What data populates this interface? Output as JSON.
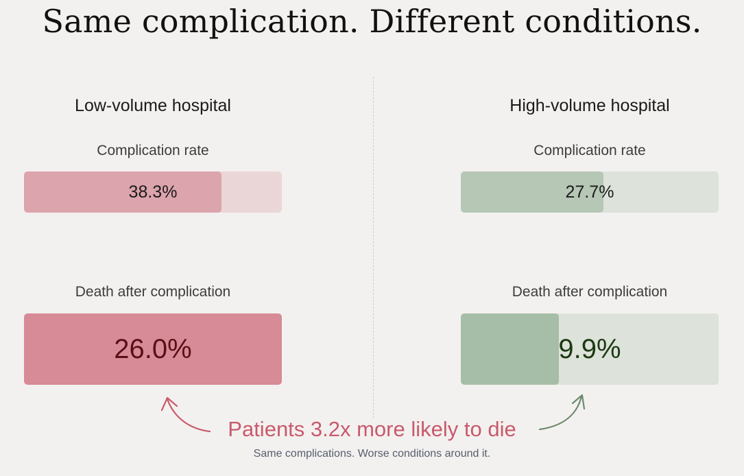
{
  "title": "Same complication. Different conditions.",
  "panels": [
    {
      "name": "Low-volume hospital",
      "complication_label": "Complication rate",
      "complication_text": "38.3%",
      "death_label": "Death after complication",
      "death_text": "26.0%"
    },
    {
      "name": "High-volume hospital",
      "complication_label": "Complication rate",
      "complication_text": "27.7%",
      "death_label": "Death after complication",
      "death_text": "9.9%"
    }
  ],
  "callout": {
    "headline": "Patients 3.2x more likely to die",
    "subtext": "Same complications. Worse conditions around it."
  },
  "colors": {
    "low_accent": "#d68b96",
    "high_accent": "#a6bea7",
    "callout": "#c85a6c"
  },
  "chart_data": {
    "type": "bar",
    "title": "Same complication. Different conditions.",
    "categories": [
      "Low-volume hospital",
      "High-volume hospital"
    ],
    "series": [
      {
        "name": "Complication rate",
        "values": [
          38.3,
          27.7
        ],
        "max": 50
      },
      {
        "name": "Death after complication",
        "values": [
          26.0,
          9.9
        ],
        "max": 26.0
      }
    ],
    "unit": "%"
  }
}
